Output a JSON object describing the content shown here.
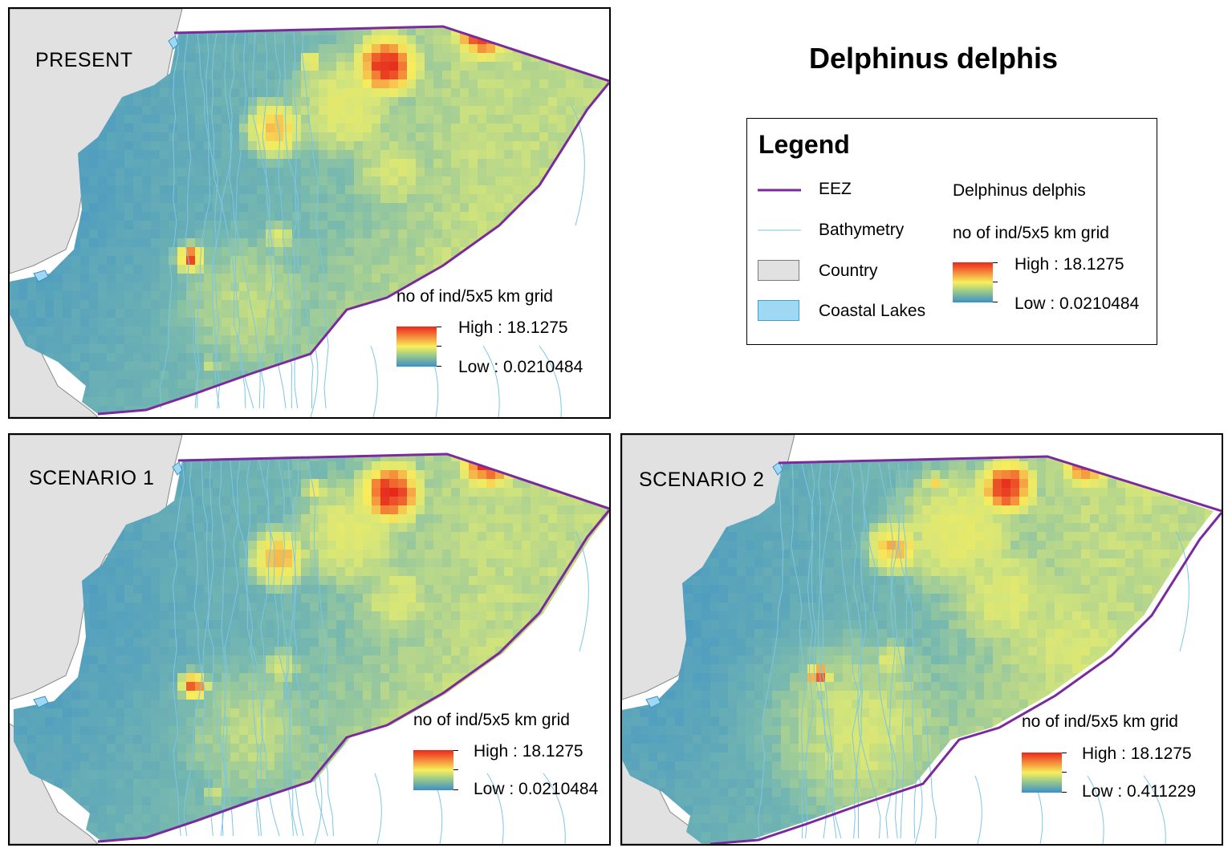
{
  "title": "Delphinus delphis",
  "legend": {
    "title": "Legend",
    "items": [
      {
        "label": "EEZ",
        "symbol": "line",
        "color": "#7b2a9e"
      },
      {
        "label": "Bathymetry",
        "symbol": "thin-line",
        "color": "#7cc6e6"
      },
      {
        "label": "Country",
        "symbol": "fill",
        "color": "#e1e1e1"
      },
      {
        "label": "Coastal Lakes",
        "symbol": "fill",
        "color": "#9ed8f2"
      }
    ],
    "species": "Delphinus delphis",
    "unit": "no of ind/5x5 km grid",
    "high": "High : 18.1275",
    "low": "Low : 0.0210484"
  },
  "colors": {
    "eez": "#7b2a9e",
    "bathymetry": "#7cc6e6",
    "country": "#e1e1e1",
    "lakes": "#9ed8f2",
    "ramp_high": "#e8291c",
    "ramp_mid": "#f7ef5c",
    "ramp_low": "#3b8fc8"
  },
  "panels": [
    {
      "id": "present",
      "label": "PRESENT",
      "unit": "no of ind/5x5 km grid",
      "high": "High : 18.1275",
      "low": "Low : 0.0210484"
    },
    {
      "id": "scenario1",
      "label": "SCENARIO 1",
      "unit": "no of ind/5x5 km grid",
      "high": "High : 18.1275",
      "low": "Low : 0.0210484"
    },
    {
      "id": "scenario2",
      "label": "SCENARIO 2",
      "unit": "no of ind/5x5 km grid",
      "high": "High : 18.1275",
      "low": "Low : 0.411229"
    }
  ]
}
